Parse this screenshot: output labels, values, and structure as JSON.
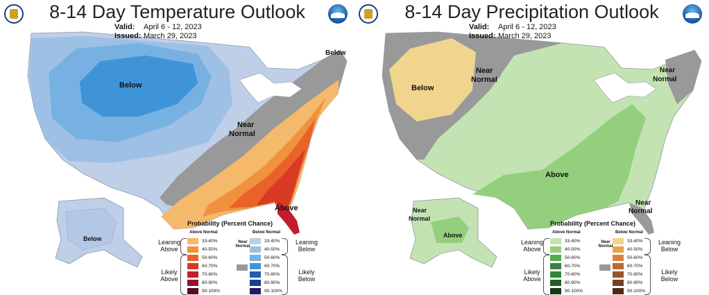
{
  "panels": [
    {
      "title": "8-14 Day Temperature Outlook",
      "valid_label": "Valid:",
      "valid_value": "April 6 - 12, 2023",
      "issued_label": "Issued:",
      "issued_value": "March 29, 2023",
      "region_labels": {
        "below_west": "Below",
        "below_ne": "Below",
        "near_normal_1": "Near",
        "near_normal_2": "Normal",
        "above": "Above",
        "below_alaska": "Below"
      },
      "legend": {
        "title": "Probability (Percent Chance)",
        "above_head": "Above Normal",
        "below_head": "Below Normal",
        "near_head": "Near Normal",
        "leaning_above": "Leaning Above",
        "likely_above": "Likely Above",
        "leaning_below": "Leaning Below",
        "likely_below": "Likely Below",
        "ranges": [
          "33-40%",
          "40-50%",
          "50-60%",
          "60-70%",
          "70-80%",
          "80-90%",
          "90-100%"
        ],
        "above_colors": [
          "#f4b96a",
          "#f0913d",
          "#e8622a",
          "#d83a24",
          "#c21d2e",
          "#93132a",
          "#5a0d1a"
        ],
        "below_colors": [
          "#bfcfe8",
          "#9ec0e4",
          "#76b1e2",
          "#3f94d8",
          "#1f5fb3",
          "#1a3d8f",
          "#221a5c"
        ],
        "near_color": "#999999"
      }
    },
    {
      "title": "8-14 Day Precipitation Outlook",
      "valid_label": "Valid:",
      "valid_value": "April 6 - 12, 2023",
      "issued_label": "Issued:",
      "issued_value": "March 29, 2023",
      "region_labels": {
        "below_west": "Below",
        "near_normal_w1": "Near",
        "near_normal_w2": "Normal",
        "near_normal_ne1": "Near",
        "near_normal_ne2": "Normal",
        "above": "Above",
        "near_normal_se1": "Near",
        "near_normal_se2": "Normal",
        "near_normal_ak1": "Near",
        "near_normal_ak2": "Normal",
        "above_alaska": "Above"
      },
      "legend": {
        "title": "Probability (Percent Chance)",
        "above_head": "Above Normal",
        "below_head": "Below Normal",
        "near_head": "Near Normal",
        "leaning_above": "Leaning Above",
        "likely_above": "Likely Above",
        "leaning_below": "Leaning Below",
        "likely_below": "Likely Below",
        "ranges": [
          "33-40%",
          "40-50%",
          "50-60%",
          "60-70%",
          "70-80%",
          "80-90%",
          "90-100%"
        ],
        "above_colors": [
          "#c4e3b2",
          "#93cf7d",
          "#4fb04a",
          "#3c7f45",
          "#2d8a39",
          "#22602a",
          "#14391a"
        ],
        "below_colors": [
          "#f1d58f",
          "#e7a24f",
          "#d9823a",
          "#b86a33",
          "#985529",
          "#7a3d1d",
          "#522814"
        ],
        "near_color": "#999999"
      }
    }
  ]
}
